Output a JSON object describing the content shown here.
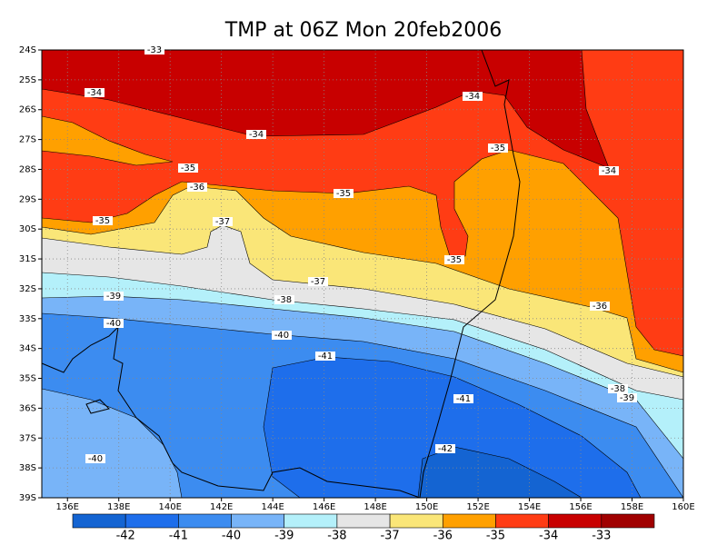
{
  "title": "TMP at 06Z Mon 20feb2006",
  "lat_labels": [
    "24S",
    "25S",
    "26S",
    "27S",
    "28S",
    "29S",
    "30S",
    "31S",
    "32S",
    "33S",
    "34S",
    "35S",
    "36S",
    "37S",
    "38S",
    "39S"
  ],
  "lon_labels": [
    "136E",
    "138E",
    "140E",
    "142E",
    "144E",
    "146E",
    "148E",
    "150E",
    "152E",
    "154E",
    "156E",
    "158E",
    "160E"
  ],
  "contour_labels": [
    "-33",
    "-34",
    "-34",
    "-34",
    "-35",
    "-34",
    "-35",
    "-36",
    "-35",
    "-35",
    "-37",
    "-35",
    "-37",
    "-39",
    "-38",
    "-36",
    "-40",
    "-40",
    "-41",
    "-38",
    "-39",
    "-41",
    "-42",
    "-40"
  ],
  "colorbar": {
    "labels": [
      "-42",
      "-41",
      "-40",
      "-39",
      "-38",
      "-37",
      "-36",
      "-35",
      "-34",
      "-33"
    ],
    "colors": [
      "#1464d2",
      "#1e6eeb",
      "#3c8cf0",
      "#78b4f8",
      "#b4f0fa",
      "#e6e6e6",
      "#fae678",
      "#ffa000",
      "#ff3c14",
      "#c80000",
      "#a00000"
    ]
  }
}
